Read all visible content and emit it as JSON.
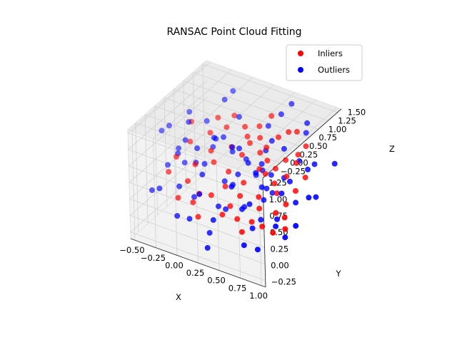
{
  "chart_data": {
    "type": "scatter",
    "projection": "3d",
    "title": "RANSAC Point Cloud Fitting",
    "xlabel": "X",
    "ylabel": "Y",
    "zlabel": "Z",
    "xlim": [
      -0.55,
      1.05
    ],
    "ylim": [
      -0.35,
      1.3
    ],
    "zlim": [
      -0.45,
      1.6
    ],
    "xticks": [
      "−0.50",
      "−0.25",
      "0.00",
      "0.25",
      "0.50",
      "0.75",
      "1.00"
    ],
    "yticks": [
      "−0.25",
      "0.00",
      "0.25",
      "0.50",
      "0.75",
      "1.00",
      "1.25"
    ],
    "zticks": [
      "−0.25",
      "0.00",
      "0.25",
      "0.50",
      "0.75",
      "1.00",
      "1.25",
      "1.50"
    ],
    "grid": true,
    "legend": "top-right",
    "series": [
      {
        "name": "Inliers",
        "color": "#ff0000",
        "points": [
          [
            0.05,
            0.35,
            0.05
          ],
          [
            -0.1,
            0.6,
            0.7
          ],
          [
            0.3,
            0.55,
            1.1
          ],
          [
            0.45,
            0.4,
            0.9
          ],
          [
            -0.3,
            0.7,
            0.6
          ],
          [
            0.6,
            0.2,
            0.4
          ],
          [
            0.2,
            0.8,
            1.0
          ],
          [
            0.75,
            0.15,
            0.5
          ],
          [
            0.1,
            0.1,
            -0.1
          ],
          [
            0.4,
            0.7,
            1.05
          ],
          [
            -0.2,
            0.3,
            0.3
          ],
          [
            0.55,
            0.5,
            0.95
          ],
          [
            0.85,
            0.3,
            0.55
          ],
          [
            0.0,
            0.9,
            0.9
          ],
          [
            0.35,
            0.25,
            0.45
          ],
          [
            0.65,
            0.65,
            1.0
          ],
          [
            -0.4,
            0.5,
            0.45
          ],
          [
            0.25,
            0.05,
            0.2
          ],
          [
            0.5,
            0.85,
            1.15
          ],
          [
            0.9,
            0.45,
            0.7
          ],
          [
            0.15,
            0.45,
            0.6
          ],
          [
            0.7,
            0.35,
            0.65
          ],
          [
            -0.05,
            0.15,
            0.1
          ],
          [
            0.3,
            0.95,
            1.1
          ],
          [
            0.8,
            0.7,
            0.95
          ],
          [
            0.45,
            0.1,
            0.15
          ],
          [
            -0.15,
            0.8,
            0.8
          ],
          [
            0.6,
            0.95,
            1.2
          ],
          [
            0.95,
            0.1,
            0.3
          ],
          [
            0.2,
            0.6,
            0.85
          ],
          [
            0.05,
            1.05,
            1.0
          ],
          [
            0.7,
            0.05,
            0.25
          ],
          [
            0.35,
            0.4,
            0.55
          ],
          [
            -0.35,
            0.9,
            0.75
          ],
          [
            0.55,
            0.3,
            0.5
          ],
          [
            0.85,
            0.9,
            1.1
          ],
          [
            0.1,
            0.25,
            0.25
          ],
          [
            0.4,
            1.1,
            1.2
          ],
          [
            0.75,
            0.55,
            0.8
          ],
          [
            -0.25,
            0.1,
            0.15
          ],
          [
            0.25,
            0.75,
            0.95
          ],
          [
            0.65,
            0.45,
            0.7
          ],
          [
            0.0,
            0.55,
            0.55
          ],
          [
            0.9,
            0.2,
            0.4
          ],
          [
            0.5,
            0.65,
            0.85
          ],
          [
            -0.1,
            1.0,
            0.9
          ],
          [
            0.3,
            0.15,
            0.3
          ],
          [
            0.8,
            0.8,
            1.0
          ],
          [
            0.15,
            0.9,
            1.05
          ],
          [
            0.6,
            0.1,
            0.2
          ],
          [
            -0.45,
            0.3,
            0.35
          ],
          [
            0.45,
            0.55,
            0.75
          ],
          [
            0.95,
            0.6,
            0.85
          ],
          [
            0.2,
            0.35,
            0.4
          ],
          [
            0.7,
            1.0,
            1.2
          ],
          [
            -0.2,
            0.45,
            0.5
          ],
          [
            0.35,
            0.85,
            1.0
          ],
          [
            0.55,
            0.0,
            0.05
          ],
          [
            0.1,
            0.7,
            0.8
          ],
          [
            0.85,
            0.05,
            0.2
          ]
        ]
      },
      {
        "name": "Outliers",
        "color": "#0000ff",
        "points": [
          [
            -0.5,
            0.2,
            1.2
          ],
          [
            0.9,
            1.2,
            -0.3
          ],
          [
            0.1,
            0.0,
            1.4
          ],
          [
            0.6,
            1.1,
            0.1
          ],
          [
            -0.3,
            -0.2,
            0.8
          ],
          [
            1.0,
            0.5,
            1.5
          ],
          [
            0.3,
            1.25,
            -0.1
          ],
          [
            -0.45,
            1.0,
            0.2
          ],
          [
            0.75,
            -0.3,
            1.0
          ],
          [
            0.2,
            0.6,
            -0.4
          ],
          [
            -0.1,
            1.2,
            1.3
          ],
          [
            0.85,
            0.0,
            -0.2
          ],
          [
            0.45,
            -0.1,
            1.3
          ],
          [
            -0.35,
            0.4,
            -0.3
          ],
          [
            1.0,
            1.0,
            0.6
          ],
          [
            0.0,
            -0.3,
            0.5
          ],
          [
            0.55,
            1.25,
            1.4
          ],
          [
            -0.2,
            0.8,
            -0.2
          ],
          [
            0.7,
            0.3,
            1.45
          ],
          [
            0.25,
            -0.25,
            -0.2
          ],
          [
            -0.5,
            0.7,
            1.0
          ],
          [
            0.95,
            0.8,
            0.0
          ],
          [
            0.15,
            1.1,
            0.3
          ],
          [
            0.65,
            -0.2,
            0.7
          ],
          [
            -0.4,
            -0.1,
            1.1
          ],
          [
            0.8,
            1.15,
            1.25
          ],
          [
            0.35,
            0.1,
            -0.35
          ],
          [
            -0.15,
            0.3,
            1.35
          ],
          [
            0.5,
            0.9,
            -0.25
          ],
          [
            0.05,
            0.5,
            1.1
          ],
          [
            0.9,
            -0.1,
            0.4
          ],
          [
            -0.3,
            1.15,
            0.6
          ],
          [
            0.4,
            0.45,
            1.5
          ],
          [
            0.75,
            0.65,
            -0.3
          ],
          [
            -0.05,
            -0.05,
            0.0
          ],
          [
            0.6,
            0.2,
            1.2
          ],
          [
            -0.45,
            0.55,
            0.8
          ],
          [
            1.0,
            0.25,
            1.0
          ],
          [
            0.2,
            1.2,
            0.8
          ],
          [
            0.5,
            -0.3,
            0.2
          ],
          [
            -0.25,
            0.95,
            1.4
          ],
          [
            0.85,
            0.4,
            -0.1
          ],
          [
            0.1,
            0.8,
            0.1
          ],
          [
            0.65,
            1.05,
            0.5
          ],
          [
            -0.1,
            -0.2,
            1.2
          ],
          [
            0.3,
            0.3,
            0.0
          ],
          [
            0.95,
            1.25,
            0.9
          ],
          [
            -0.35,
            0.1,
            0.4
          ],
          [
            0.45,
            0.75,
            0.2
          ],
          [
            0.75,
            -0.05,
            1.35
          ],
          [
            0.0,
            1.25,
            0.4
          ],
          [
            0.55,
            0.55,
            -0.35
          ],
          [
            -0.5,
            0.9,
            0.5
          ],
          [
            0.25,
            -0.15,
            0.9
          ],
          [
            0.8,
            0.85,
            0.3
          ],
          [
            -0.2,
            0.6,
            1.0
          ],
          [
            0.4,
            1.0,
            1.45
          ],
          [
            0.9,
            0.6,
            1.2
          ],
          [
            0.15,
            0.2,
            0.7
          ],
          [
            0.7,
            0.15,
            0.0
          ],
          [
            -0.4,
            0.25,
            0.0
          ],
          [
            0.35,
            0.65,
            1.3
          ],
          [
            1.0,
            0.95,
            0.2
          ],
          [
            0.05,
            1.0,
            -0.3
          ],
          [
            0.6,
            0.4,
            0.6
          ],
          [
            -0.15,
            0.0,
            -0.1
          ],
          [
            0.5,
            1.15,
            0.9
          ],
          [
            0.85,
            0.2,
            0.8
          ],
          [
            -0.3,
            0.75,
            0.3
          ],
          [
            0.2,
            0.4,
            1.0
          ],
          [
            0.65,
            0.8,
            0.4
          ],
          [
            -0.05,
            0.7,
            0.2
          ],
          [
            0.95,
            0.35,
            0.1
          ],
          [
            0.3,
            -0.05,
            0.6
          ],
          [
            0.45,
            0.25,
            0.8
          ],
          [
            -0.45,
            0.45,
            0.6
          ],
          [
            0.1,
            0.95,
            0.6
          ],
          [
            0.75,
            0.5,
            0.2
          ],
          [
            0.55,
            0.75,
            0.6
          ],
          [
            0.25,
            0.85,
            0.5
          ]
        ]
      }
    ]
  }
}
